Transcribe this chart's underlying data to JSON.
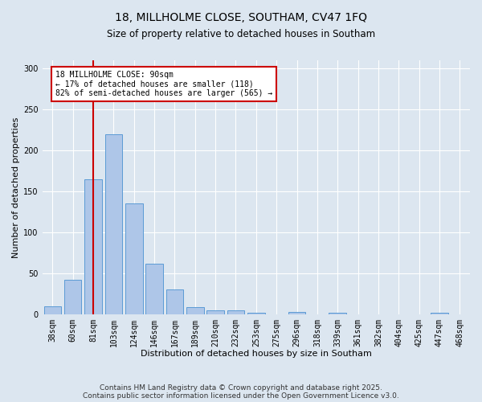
{
  "title_line1": "18, MILLHOLME CLOSE, SOUTHAM, CV47 1FQ",
  "title_line2": "Size of property relative to detached houses in Southam",
  "xlabel": "Distribution of detached houses by size in Southam",
  "ylabel": "Number of detached properties",
  "categories": [
    "38sqm",
    "60sqm",
    "81sqm",
    "103sqm",
    "124sqm",
    "146sqm",
    "167sqm",
    "189sqm",
    "210sqm",
    "232sqm",
    "253sqm",
    "275sqm",
    "296sqm",
    "318sqm",
    "339sqm",
    "361sqm",
    "382sqm",
    "404sqm",
    "425sqm",
    "447sqm",
    "468sqm"
  ],
  "values": [
    10,
    42,
    165,
    220,
    135,
    62,
    30,
    9,
    5,
    5,
    2,
    0,
    3,
    0,
    2,
    0,
    0,
    0,
    0,
    2,
    0
  ],
  "bar_color": "#aec6e8",
  "bar_edge_color": "#5b9bd5",
  "vline_x_index": 2,
  "vline_color": "#cc0000",
  "annotation_text": "18 MILLHOLME CLOSE: 90sqm\n← 17% of detached houses are smaller (118)\n82% of semi-detached houses are larger (565) →",
  "annotation_box_color": "#ffffff",
  "annotation_box_edge": "#cc0000",
  "ylim": [
    0,
    310
  ],
  "yticks": [
    0,
    50,
    100,
    150,
    200,
    250,
    300
  ],
  "footer_text": "Contains HM Land Registry data © Crown copyright and database right 2025.\nContains public sector information licensed under the Open Government Licence v3.0.",
  "background_color": "#dce6f0",
  "plot_bg_color": "#dce6f0",
  "grid_color": "#ffffff",
  "title_fontsize": 10,
  "subtitle_fontsize": 8.5,
  "xlabel_fontsize": 8,
  "ylabel_fontsize": 8,
  "tick_fontsize": 7,
  "footer_fontsize": 6.5
}
